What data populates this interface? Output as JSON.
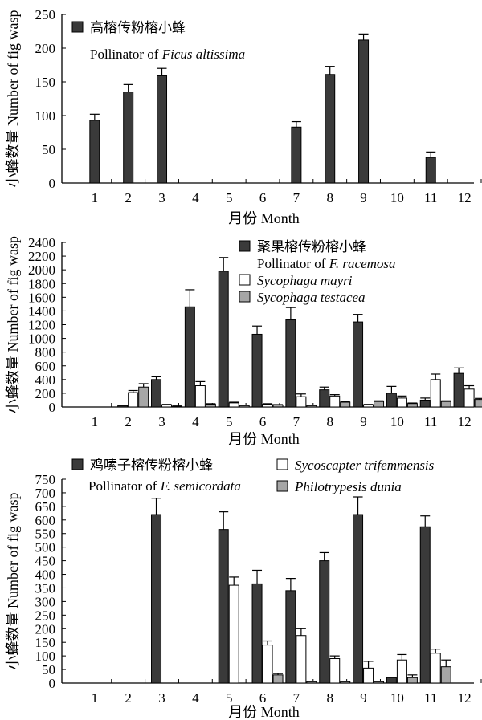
{
  "chart_data": [
    {
      "type": "bar",
      "categories": [
        "1",
        "2",
        "3",
        "4",
        "5",
        "6",
        "7",
        "8",
        "9",
        "10",
        "11",
        "12"
      ],
      "ylabel": "小蜂数量 Number of fig wasp",
      "xlabel": "月份 Month",
      "ylim": [
        0,
        250
      ],
      "yticks": [
        "0",
        "50",
        "100",
        "150",
        "200",
        "250"
      ],
      "series": [
        {
          "name": "高榕传粉榕小蜂",
          "name_line2": "Pollinator of ",
          "name_line2_italic": "Ficus altissima",
          "color": "#3a3a3a",
          "values": [
            93,
            135,
            159,
            0,
            0,
            0,
            83,
            161,
            212,
            0,
            38,
            0
          ],
          "errors": [
            9,
            11,
            11,
            0,
            0,
            0,
            8,
            12,
            9,
            0,
            8,
            0
          ]
        }
      ]
    },
    {
      "type": "bar",
      "categories": [
        "1",
        "2",
        "3",
        "4",
        "5",
        "6",
        "7",
        "8",
        "9",
        "10",
        "11",
        "12"
      ],
      "ylabel": "小蜂数量 Number of fig wasp",
      "xlabel": "月份 Month",
      "ylim": [
        0,
        2400
      ],
      "yticks": [
        "0",
        "200",
        "400",
        "600",
        "800",
        "1000",
        "1200",
        "1400",
        "1600",
        "1800",
        "2000",
        "2200",
        "2400"
      ],
      "series": [
        {
          "name": "聚果榕传粉榕小蜂",
          "name_line2": "Pollinator of ",
          "name_line2_italic": "F. racemosa",
          "color": "#3a3a3a",
          "values": [
            0,
            20,
            400,
            1460,
            1980,
            1060,
            1270,
            250,
            1240,
            200,
            100,
            490
          ],
          "errors": [
            0,
            8,
            40,
            250,
            200,
            120,
            180,
            40,
            110,
            100,
            30,
            80
          ]
        },
        {
          "name_italic": "Sycophaga mayri",
          "color": "#ffffff",
          "values": [
            0,
            210,
            30,
            310,
            60,
            40,
            150,
            160,
            30,
            130,
            400,
            260
          ],
          "errors": [
            0,
            30,
            8,
            60,
            10,
            8,
            40,
            20,
            8,
            30,
            80,
            50
          ]
        },
        {
          "name_italic": "Sycophaga testacea",
          "color": "#a6a6a6",
          "values": [
            0,
            290,
            10,
            40,
            20,
            30,
            20,
            70,
            80,
            50,
            80,
            110
          ],
          "errors": [
            0,
            50,
            5,
            8,
            5,
            5,
            5,
            10,
            10,
            8,
            10,
            15
          ]
        }
      ]
    },
    {
      "type": "bar",
      "categories": [
        "1",
        "2",
        "3",
        "4",
        "5",
        "6",
        "7",
        "8",
        "9",
        "10",
        "11",
        "12"
      ],
      "ylabel": "小蜂数量 Number of fig wasp",
      "xlabel": "月份 Month",
      "ylim": [
        0,
        750
      ],
      "yticks": [
        "0",
        "50",
        "100",
        "150",
        "200",
        "250",
        "300",
        "350",
        "400",
        "450",
        "500",
        "550",
        "600",
        "650",
        "700",
        "750"
      ],
      "series": [
        {
          "name": "鸡嗉子榕传粉榕小蜂",
          "name_line2": "Pollinator of ",
          "name_line2_italic": "F. semicordata",
          "color": "#3a3a3a",
          "values": [
            0,
            0,
            620,
            0,
            565,
            365,
            340,
            450,
            620,
            20,
            575,
            0
          ],
          "errors": [
            0,
            0,
            60,
            0,
            65,
            50,
            45,
            30,
            65,
            0,
            40,
            0
          ]
        },
        {
          "name_italic": "Sycoscapter trifemmensis",
          "color": "#ffffff",
          "values": [
            0,
            0,
            0,
            0,
            360,
            140,
            175,
            90,
            55,
            85,
            110,
            0
          ],
          "errors": [
            0,
            0,
            0,
            0,
            30,
            15,
            25,
            10,
            25,
            20,
            15,
            0
          ]
        },
        {
          "name_italic": "Philotrypesis dunia",
          "color": "#a6a6a6",
          "values": [
            0,
            0,
            0,
            0,
            0,
            30,
            5,
            5,
            5,
            20,
            60,
            0
          ],
          "errors": [
            0,
            0,
            0,
            0,
            0,
            5,
            2,
            2,
            2,
            10,
            25,
            0
          ]
        }
      ]
    }
  ]
}
